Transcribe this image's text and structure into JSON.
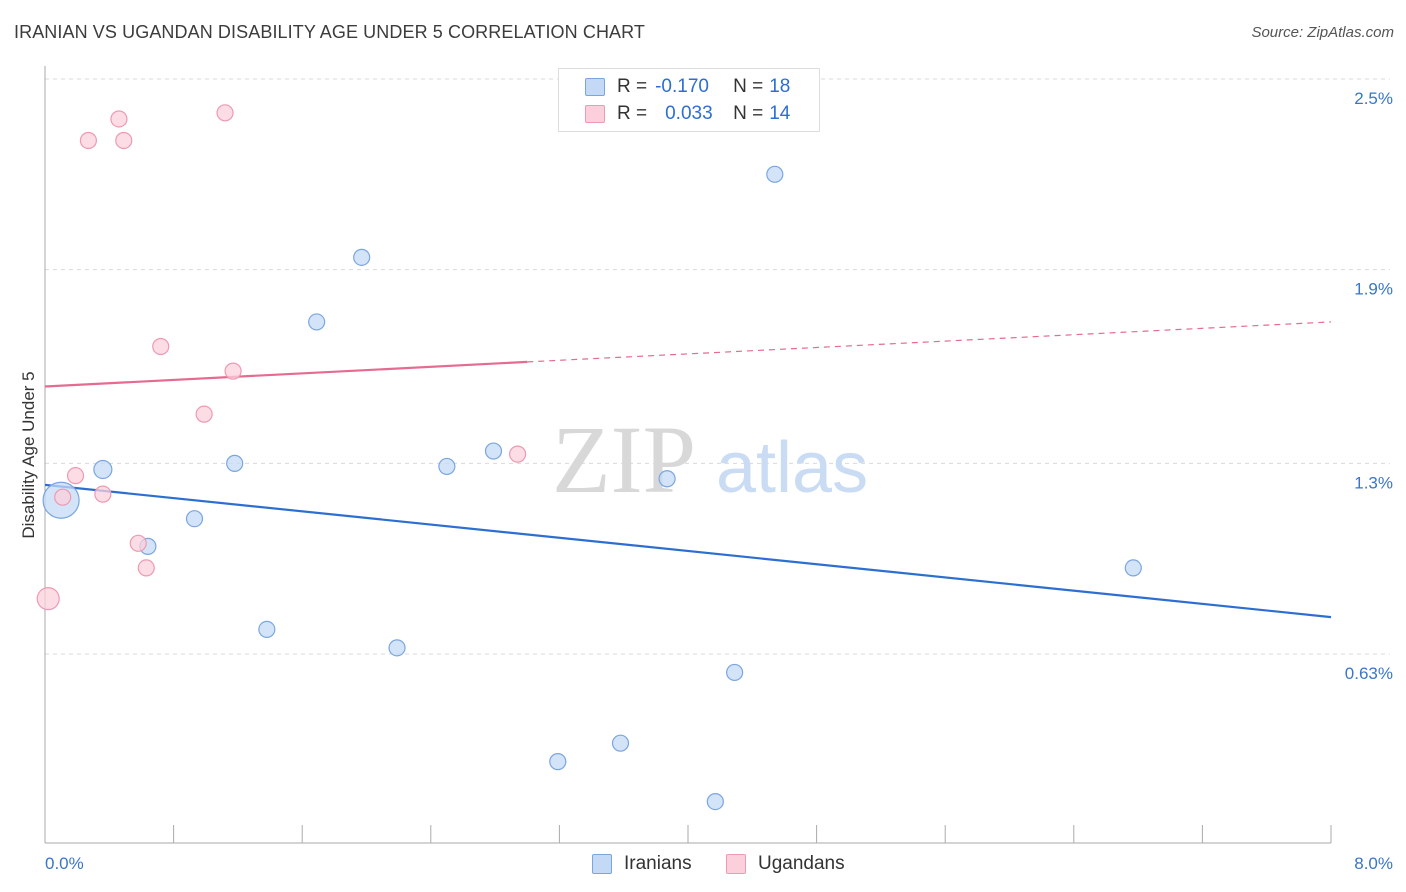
{
  "title": "IRANIAN VS UGANDAN DISABILITY AGE UNDER 5 CORRELATION CHART",
  "source": "Source: ZipAtlas.com",
  "watermark": {
    "zip": "ZIP",
    "atlas": "atlas"
  },
  "legend": {
    "rows": [
      {
        "r_label": "R =",
        "r_value": "-0.170",
        "n_label": "N =",
        "n_value": "18"
      },
      {
        "r_label": "R =",
        "r_value": "0.033",
        "n_label": "N =",
        "n_value": "14"
      }
    ]
  },
  "bottom_legend": {
    "iranians": "Iranians",
    "ugandans": "Ugandans"
  },
  "colors": {
    "iranians_fill": "#c4d9f5",
    "iranians_stroke": "#7aa6e0",
    "iranians_line": "#2d6fd0",
    "ugandans_fill": "#fbd0dc",
    "ugandans_stroke": "#ee9ab2",
    "ugandans_line": "#e56b90",
    "grid": "#d9d9d9",
    "axis_text": "#3a76c9"
  },
  "chart_data": {
    "type": "scatter",
    "title": "IRANIAN VS UGANDAN DISABILITY AGE UNDER 5 CORRELATION CHART",
    "xlabel": "",
    "ylabel": "Disability Age Under 5",
    "xlim": [
      0,
      8.0
    ],
    "ylim": [
      0.0,
      2.6
    ],
    "x_tick_labels": [
      "0.0%",
      "8.0%"
    ],
    "y_ticks": [
      {
        "value": 0.63,
        "label": "0.63%"
      },
      {
        "value": 1.25,
        "label": "1.3%"
      },
      {
        "value": 1.88,
        "label": "1.9%"
      },
      {
        "value": 2.5,
        "label": "2.5%"
      }
    ],
    "series": [
      {
        "name": "Iranians",
        "R": -0.17,
        "N": 18,
        "points": [
          {
            "x": 0.1,
            "y": 1.13,
            "size": 18
          },
          {
            "x": 0.36,
            "y": 1.23,
            "size": 9
          },
          {
            "x": 0.64,
            "y": 0.98,
            "size": 8
          },
          {
            "x": 0.93,
            "y": 1.07,
            "size": 8
          },
          {
            "x": 1.18,
            "y": 1.25,
            "size": 8
          },
          {
            "x": 1.38,
            "y": 0.71,
            "size": 8
          },
          {
            "x": 1.69,
            "y": 1.71,
            "size": 8
          },
          {
            "x": 1.97,
            "y": 1.92,
            "size": 8
          },
          {
            "x": 2.19,
            "y": 0.65,
            "size": 8
          },
          {
            "x": 2.5,
            "y": 1.24,
            "size": 8
          },
          {
            "x": 2.79,
            "y": 1.29,
            "size": 8
          },
          {
            "x": 3.19,
            "y": 0.28,
            "size": 8
          },
          {
            "x": 3.58,
            "y": 0.34,
            "size": 8
          },
          {
            "x": 3.87,
            "y": 1.2,
            "size": 8
          },
          {
            "x": 4.17,
            "y": 0.15,
            "size": 8
          },
          {
            "x": 4.29,
            "y": 0.57,
            "size": 8
          },
          {
            "x": 4.54,
            "y": 2.19,
            "size": 8
          },
          {
            "x": 6.77,
            "y": 0.91,
            "size": 8
          }
        ],
        "trend": {
          "x0": 0.0,
          "y0": 1.18,
          "x1": 8.0,
          "y1": 0.75,
          "style": "solid"
        }
      },
      {
        "name": "Ugandans",
        "R": 0.033,
        "N": 14,
        "points": [
          {
            "x": 0.02,
            "y": 0.81,
            "size": 11
          },
          {
            "x": 0.11,
            "y": 1.14,
            "size": 8
          },
          {
            "x": 0.19,
            "y": 1.21,
            "size": 8
          },
          {
            "x": 0.27,
            "y": 2.3,
            "size": 8
          },
          {
            "x": 0.36,
            "y": 1.15,
            "size": 8
          },
          {
            "x": 0.46,
            "y": 2.37,
            "size": 8
          },
          {
            "x": 0.49,
            "y": 2.3,
            "size": 8
          },
          {
            "x": 0.58,
            "y": 0.99,
            "size": 8
          },
          {
            "x": 0.63,
            "y": 0.91,
            "size": 8
          },
          {
            "x": 0.72,
            "y": 1.63,
            "size": 8
          },
          {
            "x": 0.99,
            "y": 1.41,
            "size": 8
          },
          {
            "x": 1.12,
            "y": 2.39,
            "size": 8
          },
          {
            "x": 1.17,
            "y": 1.55,
            "size": 8
          },
          {
            "x": 2.94,
            "y": 1.28,
            "size": 8
          }
        ],
        "trend": {
          "x0": 0.0,
          "y0": 1.5,
          "x1": 3.0,
          "y1": 1.58,
          "x_ext": 8.0,
          "y_ext": 1.71,
          "style": "solid-then-dashed"
        }
      }
    ]
  }
}
